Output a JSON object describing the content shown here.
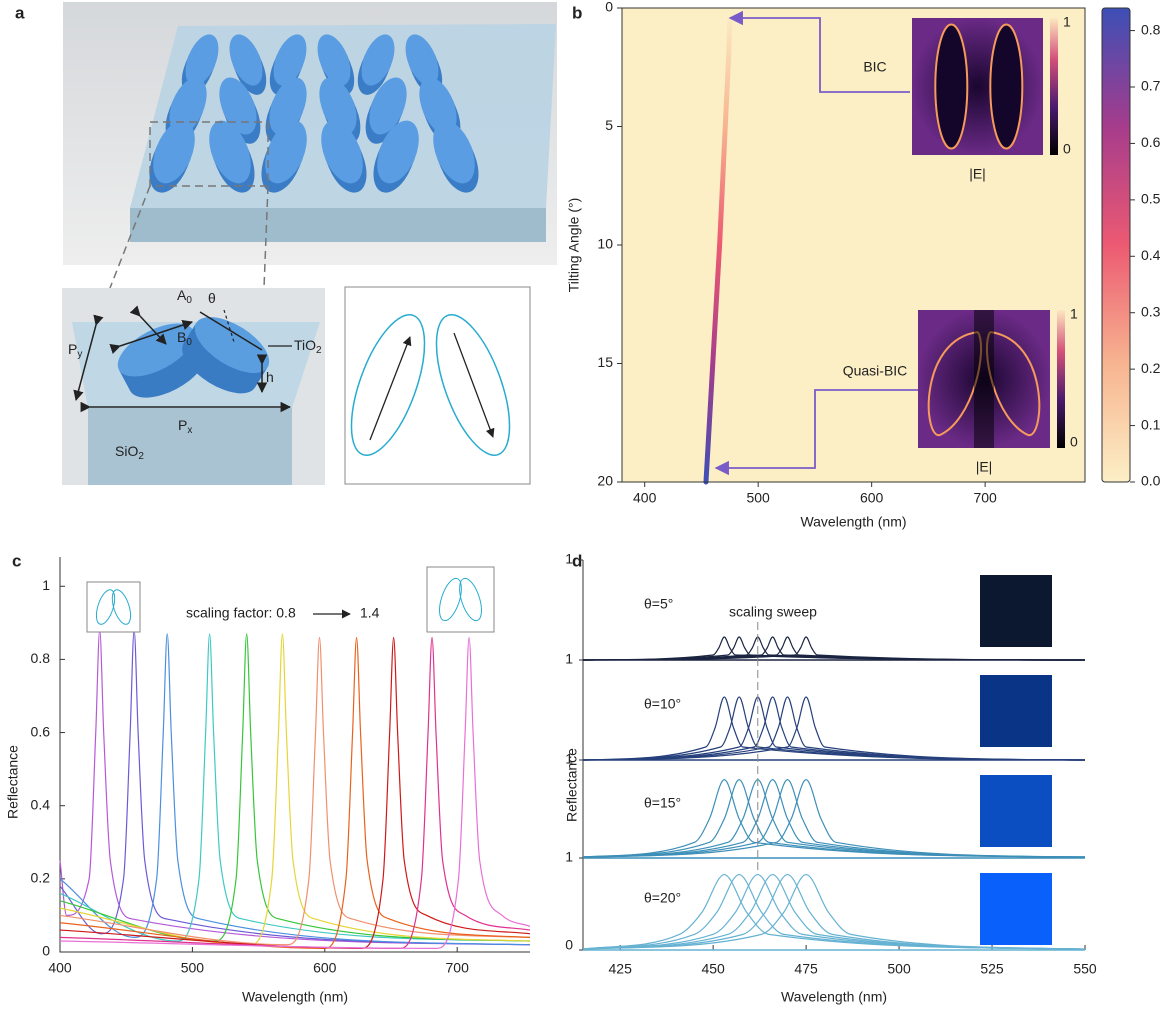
{
  "panel_labels": [
    "a",
    "b",
    "c",
    "d"
  ],
  "panel_a": {
    "labels": [
      {
        "text": "A",
        "sub": "0"
      },
      {
        "text": "B",
        "sub": "0"
      },
      {
        "text": "θ"
      },
      {
        "text": "P",
        "sub": "y"
      },
      {
        "text": "P",
        "sub": "x"
      },
      {
        "text": "h"
      },
      {
        "text": "TiO",
        "sub": "2"
      },
      {
        "text": "SiO",
        "sub": "2"
      }
    ]
  },
  "chart_data": [
    {
      "type": "heatmap",
      "xlabel": "Wavelength (nm)",
      "ylabel": "Tilting Angle (°)",
      "xlim": [
        380,
        788
      ],
      "xticks": [
        400,
        500,
        600,
        700
      ],
      "ylim": [
        0,
        20
      ],
      "yticks": [
        0,
        5,
        10,
        15,
        20
      ],
      "y_inverted": true,
      "resonance": {
        "tilting_angle": [
          0.5,
          2,
          5,
          10,
          15,
          20
        ],
        "wavelength": [
          475,
          474,
          471,
          466,
          460,
          454
        ]
      },
      "colorbar": {
        "lim": [
          0,
          0.84
        ],
        "ticks": [
          {
            "value": 0,
            "label": "0.0"
          },
          0.1,
          0.2,
          0.3,
          0.4,
          0.5,
          0.6,
          0.7,
          0.8
        ],
        "colors": [
          "#fcefc6",
          "#f7b490",
          "#ec5a72",
          "#a63c8c",
          "#3d4fb6"
        ]
      },
      "insets": [
        {
          "title": "BIC",
          "xlabel": "|E|",
          "cbar_ticks": [
            1,
            0
          ]
        },
        {
          "title": "Quasi-BIC",
          "xlabel": "|E|",
          "cbar_ticks": [
            1,
            0
          ]
        }
      ]
    },
    {
      "type": "line",
      "xlabel": "Wavelength (nm)",
      "ylabel": "Reflectance",
      "xlim": [
        400,
        755
      ],
      "xticks": [
        400,
        500,
        600,
        700
      ],
      "ylim": [
        0,
        1.08
      ],
      "yticks": [
        0,
        0.2,
        0.4,
        0.6,
        0.8,
        1
      ],
      "annotation": {
        "text": "scaling factor: 0.8",
        "end": "1.4"
      },
      "series": [
        {
          "color": "#b55ad6",
          "x": [
            400,
            405,
            422,
            427,
            430,
            433,
            438,
            455,
            755
          ],
          "values": [
            0.25,
            0.1,
            0.2,
            0.6,
            0.88,
            0.6,
            0.25,
            0.09,
            0.02
          ]
        },
        {
          "color": "#6b5bd6",
          "x": [
            400,
            431,
            448,
            453,
            456,
            459,
            464,
            481,
            755
          ],
          "values": [
            0.18,
            0.05,
            0.2,
            0.6,
            0.88,
            0.6,
            0.25,
            0.09,
            0.02
          ]
        },
        {
          "color": "#4b8fe0",
          "x": [
            400,
            456,
            473,
            478,
            481,
            484,
            489,
            506,
            755
          ],
          "values": [
            0.2,
            0.04,
            0.2,
            0.6,
            0.87,
            0.6,
            0.25,
            0.09,
            0.02
          ]
        },
        {
          "color": "#3ec9c4",
          "x": [
            400,
            488,
            505,
            510,
            513,
            516,
            521,
            538,
            755
          ],
          "values": [
            0.16,
            0.03,
            0.2,
            0.6,
            0.87,
            0.6,
            0.25,
            0.09,
            0.03
          ]
        },
        {
          "color": "#37c63a",
          "x": [
            400,
            516,
            533,
            538,
            541,
            544,
            549,
            566,
            755
          ],
          "values": [
            0.14,
            0.03,
            0.2,
            0.6,
            0.87,
            0.6,
            0.25,
            0.09,
            0.03
          ]
        },
        {
          "color": "#e6d537",
          "x": [
            400,
            543,
            560,
            565,
            568,
            571,
            576,
            593,
            755
          ],
          "values": [
            0.12,
            0.02,
            0.2,
            0.6,
            0.87,
            0.6,
            0.25,
            0.09,
            0.03
          ]
        },
        {
          "color": "#f0906c",
          "x": [
            400,
            571,
            588,
            593,
            596,
            599,
            604,
            621,
            755
          ],
          "values": [
            0.1,
            0.02,
            0.2,
            0.6,
            0.86,
            0.6,
            0.25,
            0.09,
            0.04
          ]
        },
        {
          "color": "#e8621e",
          "x": [
            400,
            599,
            616,
            621,
            624,
            627,
            632,
            649,
            755
          ],
          "values": [
            0.08,
            0.01,
            0.2,
            0.6,
            0.86,
            0.6,
            0.25,
            0.09,
            0.04
          ]
        },
        {
          "color": "#cf1818",
          "x": [
            400,
            627,
            644,
            649,
            652,
            655,
            660,
            677,
            755
          ],
          "values": [
            0.06,
            0.01,
            0.2,
            0.6,
            0.86,
            0.6,
            0.25,
            0.1,
            0.05
          ]
        },
        {
          "color": "#e03090",
          "x": [
            400,
            656,
            673,
            678,
            681,
            684,
            689,
            706,
            755
          ],
          "values": [
            0.04,
            0.01,
            0.2,
            0.6,
            0.86,
            0.6,
            0.25,
            0.1,
            0.06
          ]
        },
        {
          "color": "#e870d6",
          "x": [
            400,
            684,
            701,
            706,
            709,
            712,
            717,
            734,
            755
          ],
          "values": [
            0.03,
            0.01,
            0.2,
            0.6,
            0.86,
            0.6,
            0.25,
            0.1,
            0.07
          ]
        }
      ]
    },
    {
      "type": "stacked_line",
      "xlabel": "Wavelength (nm)",
      "ylabel": "Reflectance",
      "xlim": [
        415,
        550
      ],
      "xticks": [
        425,
        450,
        475,
        500,
        525,
        550
      ],
      "ylim": [
        0,
        1
      ],
      "annotation": "scaling sweep",
      "reference_x": 462,
      "subplots": [
        {
          "label": "θ=5°",
          "color": "#1b2440",
          "swatch": "#0b1830",
          "yticks": [
            1
          ],
          "series": [
            {
              "x": [
                415,
                450,
                451.5,
                453,
                454.5,
                456,
                550
              ],
              "values": [
                0,
                0.05,
                0.12,
                0.23,
                0.12,
                0.05,
                0
              ]
            },
            {
              "x": [
                415,
                454,
                455.5,
                457,
                458.5,
                460,
                550
              ],
              "values": [
                0,
                0.05,
                0.12,
                0.23,
                0.12,
                0.05,
                0
              ]
            },
            {
              "x": [
                415,
                459,
                460.5,
                462,
                463.5,
                465,
                550
              ],
              "values": [
                0,
                0.05,
                0.12,
                0.23,
                0.12,
                0.05,
                0
              ]
            },
            {
              "x": [
                415,
                463,
                464.5,
                466,
                467.5,
                469,
                550
              ],
              "values": [
                0,
                0.05,
                0.12,
                0.23,
                0.12,
                0.05,
                0
              ]
            },
            {
              "x": [
                415,
                467,
                468.5,
                470,
                471.5,
                473,
                550
              ],
              "values": [
                0,
                0.05,
                0.12,
                0.23,
                0.12,
                0.05,
                0
              ]
            },
            {
              "x": [
                415,
                472,
                473.5,
                475,
                476.5,
                478,
                550
              ],
              "values": [
                0,
                0.05,
                0.12,
                0.23,
                0.12,
                0.05,
                0
              ]
            }
          ]
        },
        {
          "label": "θ=10°",
          "color": "#26407c",
          "swatch": "#0a3586",
          "yticks": [
            1
          ],
          "series": [
            {
              "x": [
                415,
                448,
                450.5,
                453,
                455.5,
                458,
                550
              ],
              "values": [
                0,
                0.13,
                0.32,
                0.63,
                0.32,
                0.13,
                0
              ]
            },
            {
              "x": [
                415,
                452,
                454.5,
                457,
                459.5,
                462,
                550
              ],
              "values": [
                0,
                0.13,
                0.32,
                0.63,
                0.32,
                0.13,
                0
              ]
            },
            {
              "x": [
                415,
                457,
                459.5,
                462,
                464.5,
                467,
                550
              ],
              "values": [
                0,
                0.13,
                0.32,
                0.63,
                0.32,
                0.13,
                0
              ]
            },
            {
              "x": [
                415,
                461,
                463.5,
                466,
                468.5,
                471,
                550
              ],
              "values": [
                0,
                0.13,
                0.32,
                0.63,
                0.32,
                0.13,
                0
              ]
            },
            {
              "x": [
                415,
                465,
                467.5,
                470,
                472.5,
                475,
                550
              ],
              "values": [
                0,
                0.13,
                0.32,
                0.63,
                0.32,
                0.13,
                0
              ]
            },
            {
              "x": [
                415,
                470,
                472.5,
                475,
                477.5,
                480,
                550
              ],
              "values": [
                0,
                0.13,
                0.32,
                0.63,
                0.32,
                0.13,
                0
              ]
            }
          ]
        },
        {
          "label": "θ=15°",
          "color": "#3d8fb8",
          "swatch": "#0a4ec2",
          "yticks": [
            1
          ],
          "series": [
            {
              "x": [
                415,
                445,
                449,
                453,
                457,
                461,
                550
              ],
              "values": [
                0.01,
                0.16,
                0.4,
                0.8,
                0.4,
                0.16,
                0.01
              ]
            },
            {
              "x": [
                415,
                449,
                453,
                457,
                461,
                465,
                550
              ],
              "values": [
                0.01,
                0.16,
                0.4,
                0.8,
                0.4,
                0.16,
                0.01
              ]
            },
            {
              "x": [
                415,
                454,
                458,
                462,
                466,
                470,
                550
              ],
              "values": [
                0.01,
                0.16,
                0.4,
                0.8,
                0.4,
                0.16,
                0.01
              ]
            },
            {
              "x": [
                415,
                458,
                462,
                466,
                470,
                474,
                550
              ],
              "values": [
                0.01,
                0.16,
                0.4,
                0.8,
                0.4,
                0.16,
                0.01
              ]
            },
            {
              "x": [
                415,
                462,
                466,
                470,
                474,
                478,
                550
              ],
              "values": [
                0.01,
                0.16,
                0.4,
                0.8,
                0.4,
                0.16,
                0.01
              ]
            },
            {
              "x": [
                415,
                467,
                471,
                475,
                479,
                483,
                550
              ],
              "values": [
                0.01,
                0.16,
                0.4,
                0.8,
                0.4,
                0.16,
                0.01
              ]
            }
          ]
        },
        {
          "label": "θ=20°",
          "color": "#66b2d3",
          "swatch": "#0a60fa",
          "yticks": [
            0,
            1
          ],
          "series": [
            {
              "x": [
                415,
                441,
                447,
                453,
                459,
                465,
                550
              ],
              "values": [
                0.01,
                0.17,
                0.41,
                0.82,
                0.41,
                0.17,
                0.01
              ]
            },
            {
              "x": [
                415,
                445,
                451,
                457,
                463,
                469,
                550
              ],
              "values": [
                0.01,
                0.17,
                0.41,
                0.82,
                0.41,
                0.17,
                0.01
              ]
            },
            {
              "x": [
                415,
                450,
                456,
                462,
                468,
                474,
                550
              ],
              "values": [
                0.01,
                0.17,
                0.41,
                0.82,
                0.41,
                0.17,
                0.01
              ]
            },
            {
              "x": [
                415,
                454,
                460,
                466,
                472,
                478,
                550
              ],
              "values": [
                0.01,
                0.17,
                0.41,
                0.82,
                0.41,
                0.17,
                0.01
              ]
            },
            {
              "x": [
                415,
                458,
                464,
                470,
                476,
                482,
                550
              ],
              "values": [
                0.01,
                0.17,
                0.41,
                0.82,
                0.41,
                0.17,
                0.01
              ]
            },
            {
              "x": [
                415,
                463,
                469,
                475,
                481,
                487,
                550
              ],
              "values": [
                0.01,
                0.17,
                0.41,
                0.82,
                0.41,
                0.17,
                0.01
              ]
            }
          ]
        }
      ]
    }
  ]
}
